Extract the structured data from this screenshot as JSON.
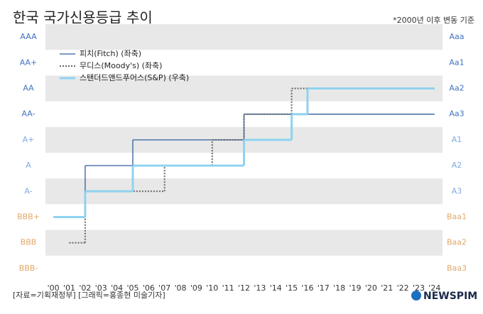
{
  "chart_data": {
    "type": "step-line",
    "title": "한국 국가신용등급 추이",
    "subtitle": "*2000년 이후 변동 기준",
    "source": "[자료=기획재정부] [그래픽=홍종현 미술기자]",
    "logo": "NEWSPIM",
    "xlim": [
      1999.5,
      2024.5
    ],
    "xticks": [
      {
        "value": 2000,
        "label": "'00"
      },
      {
        "value": 2001,
        "label": "'01"
      },
      {
        "value": 2002,
        "label": "'02"
      },
      {
        "value": 2003,
        "label": "'03"
      },
      {
        "value": 2004,
        "label": "'04"
      },
      {
        "value": 2005,
        "label": "'05"
      },
      {
        "value": 2006,
        "label": "'06"
      },
      {
        "value": 2007,
        "label": "'07"
      },
      {
        "value": 2008,
        "label": "'08"
      },
      {
        "value": 2009,
        "label": "'09"
      },
      {
        "value": 2010,
        "label": "'10"
      },
      {
        "value": 2011,
        "label": "'11"
      },
      {
        "value": 2012,
        "label": "'12"
      },
      {
        "value": 2013,
        "label": "'13"
      },
      {
        "value": 2014,
        "label": "'14"
      },
      {
        "value": 2015,
        "label": "'15"
      },
      {
        "value": 2016,
        "label": "'16"
      },
      {
        "value": 2017,
        "label": "'17"
      },
      {
        "value": 2018,
        "label": "'18"
      },
      {
        "value": 2019,
        "label": "'19"
      },
      {
        "value": 2020,
        "label": "'20"
      },
      {
        "value": 2021,
        "label": "'21"
      },
      {
        "value": 2022,
        "label": "'22"
      },
      {
        "value": 2023,
        "label": "'23"
      },
      {
        "value": 2024,
        "label": "'24"
      }
    ],
    "ylim": [
      0.5,
      10.5
    ],
    "yticks": [
      {
        "value": 10,
        "label": "AAA"
      },
      {
        "value": 9,
        "label": "AA+"
      },
      {
        "value": 8,
        "label": "AA"
      },
      {
        "value": 7,
        "label": "AA-"
      },
      {
        "value": 6,
        "label": "A+"
      },
      {
        "value": 5,
        "label": "A"
      },
      {
        "value": 4,
        "label": "A-"
      },
      {
        "value": 3,
        "label": "BBB+"
      },
      {
        "value": 2,
        "label": "BBB"
      },
      {
        "value": 1,
        "label": "BBB-"
      }
    ],
    "y2lim": [
      0.5,
      10.5
    ],
    "y2ticks": [
      {
        "value": 10,
        "label": "Aaa"
      },
      {
        "value": 9,
        "label": "Aa1"
      },
      {
        "value": 8,
        "label": "Aa2"
      },
      {
        "value": 7,
        "label": "Aa3"
      },
      {
        "value": 6,
        "label": "A1"
      },
      {
        "value": 5,
        "label": "A2"
      },
      {
        "value": 4,
        "label": "A3"
      },
      {
        "value": 3,
        "label": "Baa1"
      },
      {
        "value": 2,
        "label": "Baa2"
      },
      {
        "value": 1,
        "label": "Baa3"
      }
    ],
    "tick_colors": [
      "#3f72c0",
      "#3f72c0",
      "#3f72c0",
      "#3f72c0",
      "#7fa8e0",
      "#7fa8e0",
      "#7fa8e0",
      "#e0a868",
      "#e0a868",
      "#e0a868"
    ],
    "series": [
      {
        "name": "피치(Fitch) (좌축)",
        "color": "#2f5d9a",
        "style": "solid",
        "width": 1.3,
        "x": [
          2000,
          2002,
          2005,
          2012,
          2024
        ],
        "values": [
          3,
          5,
          6,
          7,
          7
        ]
      },
      {
        "name": "무디스(Moody's) (좌축)",
        "color": "#666666",
        "style": "dotted",
        "width": 2,
        "x": [
          2001,
          2002,
          2007,
          2010,
          2012,
          2015,
          2024
        ],
        "values": [
          2,
          4,
          5,
          6,
          7,
          8,
          8
        ]
      },
      {
        "name": "스탠더드앤드푸어스(S&P) (우축)",
        "color": "#8fd3ef",
        "style": "solid",
        "width": 3,
        "axis": "y2",
        "x": [
          2000,
          2002,
          2005,
          2012,
          2015,
          2016,
          2024
        ],
        "values": [
          3,
          4,
          5,
          6,
          7,
          8,
          8
        ]
      }
    ]
  }
}
